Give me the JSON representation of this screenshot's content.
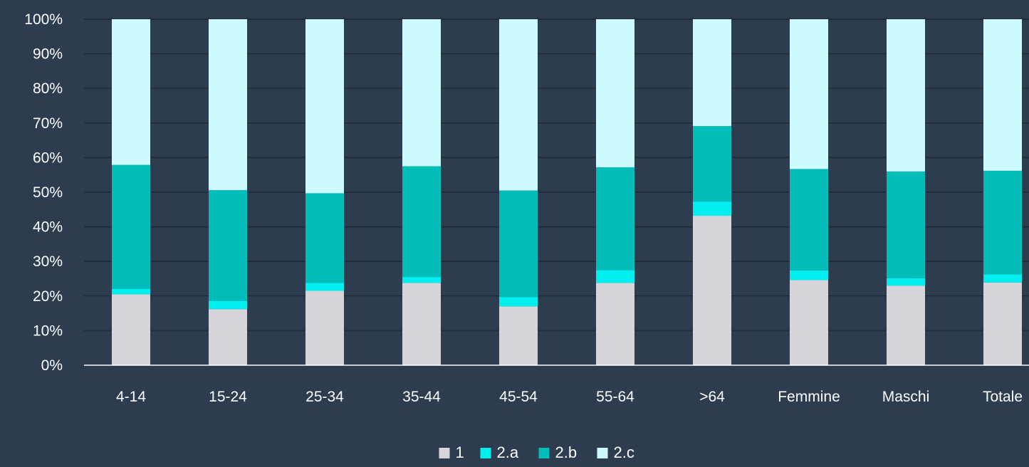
{
  "chart_data": {
    "type": "bar",
    "stacked": true,
    "percent": true,
    "categories": [
      "4-14",
      "15-24",
      "25-34",
      "35-44",
      "45-54",
      "55-64",
      ">64",
      "Femmine",
      "Maschi",
      "Totale"
    ],
    "series": [
      {
        "name": "1",
        "color": "#d8d5da",
        "values": [
          20.5,
          16.2,
          21.5,
          23.8,
          17.0,
          23.8,
          43.2,
          24.6,
          23.0,
          23.9
        ]
      },
      {
        "name": "2.a",
        "color": "#00f0f0",
        "values": [
          1.6,
          2.4,
          2.3,
          1.7,
          2.7,
          3.7,
          4.1,
          2.8,
          2.1,
          2.4
        ]
      },
      {
        "name": "2.b",
        "color": "#00bdb9",
        "values": [
          35.8,
          32.0,
          25.9,
          32.0,
          30.8,
          29.7,
          21.8,
          29.3,
          30.9,
          29.9
        ]
      },
      {
        "name": "2.c",
        "color": "#cdfbfd",
        "values": [
          42.1,
          49.4,
          50.3,
          42.5,
          49.5,
          42.8,
          30.9,
          43.3,
          44.0,
          43.8
        ]
      }
    ],
    "ylim": [
      0,
      100
    ],
    "yticks": [
      "0%",
      "10%",
      "20%",
      "30%",
      "40%",
      "50%",
      "60%",
      "70%",
      "80%",
      "90%",
      "100%"
    ],
    "grid": true,
    "legend_position": "bottom"
  }
}
